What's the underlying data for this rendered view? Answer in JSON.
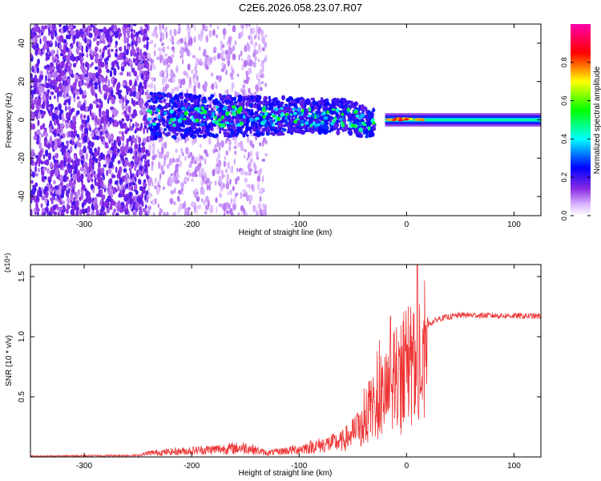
{
  "title": "C2E6.2026.058.23.07.R07",
  "chart_data": [
    {
      "type": "heatmap",
      "xlabel": "Height of straight line (km)",
      "ylabel": "Frequency (Hz)",
      "xlim": [
        -350,
        125
      ],
      "ylim": [
        -50,
        50
      ],
      "xticks": [
        -300,
        -200,
        -100,
        0,
        100
      ],
      "yticks": [
        -40,
        -20,
        0,
        20,
        40
      ],
      "colorbar": {
        "label": "Normalized spectral amplitude",
        "range": [
          0.0,
          1.0
        ],
        "ticks": [
          0.0,
          0.2,
          0.4,
          0.6,
          0.8
        ],
        "colors": [
          "#ffffff",
          "#8a2be2",
          "#0000ff",
          "#00ffff",
          "#00ff00",
          "#ffff00",
          "#ff0000",
          "#ff00ff"
        ]
      },
      "bands": [
        {
          "x_range": [
            -350,
            -240
          ],
          "freq_spread": 50,
          "amplitude": 0.12
        },
        {
          "x_range": [
            -240,
            -130
          ],
          "freq_spread": 50,
          "amplitude": 0.05
        },
        {
          "x_range": [
            -240,
            -30
          ],
          "freq_center": 0,
          "freq_spread": 10,
          "amplitude": 0.3
        },
        {
          "x_range": [
            -20,
            125
          ],
          "freq_center": 0,
          "freq_spread": 2,
          "amplitude": 0.4
        },
        {
          "x_range": [
            -20,
            15
          ],
          "freq_center": 0,
          "freq_spread": 1,
          "amplitude": 0.9
        }
      ]
    },
    {
      "type": "line",
      "xlabel": "Height of straight line (km)",
      "ylabel": "SNR (10 * v/v)",
      "y_multiplier": "(x10⁴)",
      "xlim": [
        -350,
        125
      ],
      "ylim": [
        0,
        1.6
      ],
      "xticks": [
        -300,
        -200,
        -100,
        0,
        100
      ],
      "yticks": [
        0.5,
        1.0,
        1.5
      ],
      "color": "#ee3333",
      "envelope": [
        {
          "x": -350,
          "y": 0.01
        },
        {
          "x": -250,
          "y": 0.02
        },
        {
          "x": -240,
          "y": 0.05
        },
        {
          "x": -200,
          "y": 0.08
        },
        {
          "x": -150,
          "y": 0.12
        },
        {
          "x": -130,
          "y": 0.05
        },
        {
          "x": -100,
          "y": 0.1
        },
        {
          "x": -80,
          "y": 0.15
        },
        {
          "x": -60,
          "y": 0.2
        },
        {
          "x": -40,
          "y": 0.4
        },
        {
          "x": -30,
          "y": 0.6
        },
        {
          "x": -20,
          "y": 0.8
        },
        {
          "x": -10,
          "y": 0.85
        },
        {
          "x": 0,
          "y": 0.9
        },
        {
          "x": 10,
          "y": 0.95
        },
        {
          "x": 20,
          "y": 1.1
        },
        {
          "x": 30,
          "y": 1.15
        },
        {
          "x": 50,
          "y": 1.18
        },
        {
          "x": 125,
          "y": 1.17
        }
      ],
      "peaks": [
        {
          "x": -15,
          "y": 1.17
        },
        {
          "x": 10,
          "y": 1.6
        }
      ]
    }
  ]
}
